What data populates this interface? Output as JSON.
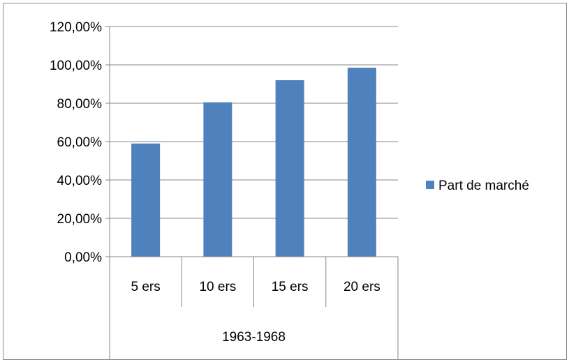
{
  "chart_data": {
    "type": "bar",
    "categories": [
      "5 ers",
      "10 ers",
      "15 ers",
      "20 ers"
    ],
    "group_label": "1963-1968",
    "series": [
      {
        "name": "Part de marché",
        "values": [
          59,
          80.5,
          92,
          98.5
        ],
        "color": "#4f81bd"
      }
    ],
    "ylim": [
      0,
      120
    ],
    "yticks": [
      0,
      20,
      40,
      60,
      80,
      100,
      120
    ],
    "ytick_labels": [
      "0,00%",
      "20,00%",
      "40,00%",
      "60,00%",
      "80,00%",
      "100,00%",
      "120,00%"
    ],
    "grid": true,
    "legend_position": "right"
  }
}
